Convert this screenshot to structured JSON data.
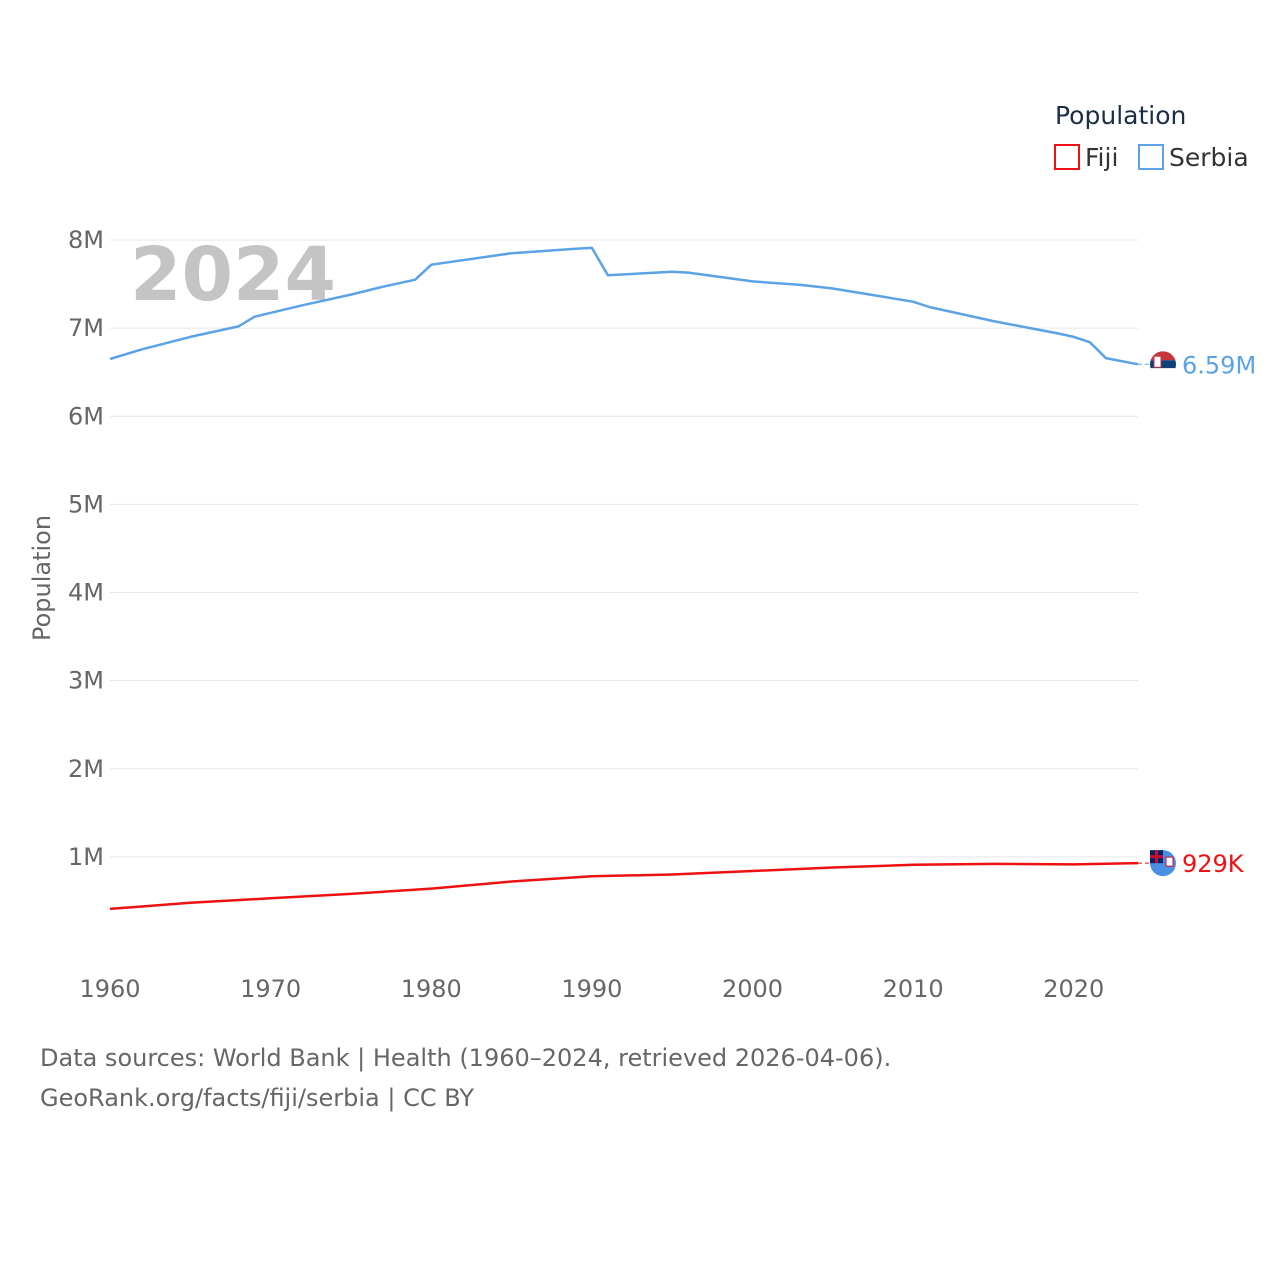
{
  "chart_data": {
    "type": "line",
    "title": "",
    "year_label": "2024",
    "xlabel": "",
    "ylabel": "Population",
    "xlim": [
      1960,
      2024
    ],
    "ylim": [
      0,
      8000000
    ],
    "x_ticks": [
      1960,
      1970,
      1980,
      1990,
      2000,
      2010,
      2020
    ],
    "y_ticks": [
      {
        "value": 1000000,
        "label": "1M"
      },
      {
        "value": 2000000,
        "label": "2M"
      },
      {
        "value": 3000000,
        "label": "3M"
      },
      {
        "value": 4000000,
        "label": "4M"
      },
      {
        "value": 5000000,
        "label": "5M"
      },
      {
        "value": 6000000,
        "label": "6M"
      },
      {
        "value": 7000000,
        "label": "7M"
      },
      {
        "value": 8000000,
        "label": "8M"
      }
    ],
    "legend": {
      "title": "Population",
      "position": "top-right"
    },
    "series": [
      {
        "name": "Fiji",
        "color": "#ee1111",
        "end_label": "929K",
        "x": [
          1960,
          1965,
          1970,
          1975,
          1980,
          1985,
          1990,
          1995,
          2000,
          2005,
          2010,
          2015,
          2020,
          2024
        ],
        "values": [
          410000,
          480000,
          530000,
          580000,
          640000,
          720000,
          780000,
          800000,
          840000,
          880000,
          910000,
          920000,
          915000,
          929000
        ]
      },
      {
        "name": "Serbia",
        "color": "#5ba3e6",
        "end_label": "6.59M",
        "x": [
          1960,
          1962,
          1965,
          1968,
          1969,
          1972,
          1975,
          1977,
          1979,
          1980,
          1985,
          1989,
          1990,
          1991,
          1995,
          1996,
          2000,
          2003,
          2005,
          2008,
          2010,
          2011,
          2015,
          2019,
          2020,
          2021,
          2022,
          2024
        ],
        "values": [
          6650000,
          6760000,
          6900000,
          7020000,
          7130000,
          7260000,
          7380000,
          7470000,
          7550000,
          7720000,
          7850000,
          7900000,
          7910000,
          7600000,
          7640000,
          7630000,
          7530000,
          7490000,
          7450000,
          7360000,
          7300000,
          7240000,
          7080000,
          6940000,
          6900000,
          6840000,
          6660000,
          6590000
        ]
      }
    ]
  },
  "source": {
    "line1": "Data sources: World Bank | Health (1960–2024, retrieved 2026-04-06).",
    "line2": "GeoRank.org/facts/fiji/serbia | CC BY"
  }
}
